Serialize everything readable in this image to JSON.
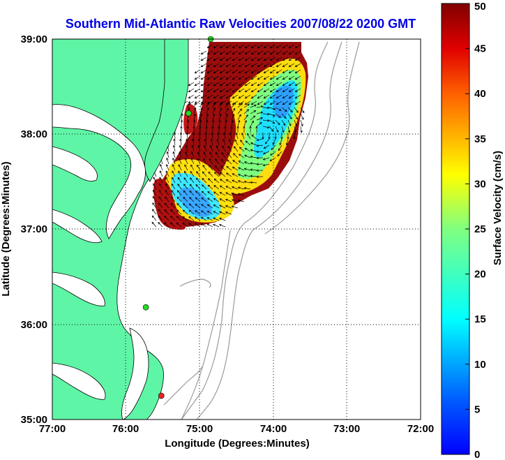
{
  "figure": {
    "title": "Southern Mid-Atlantic Raw Velocities 2007/08/22 0200 GMT",
    "xlabel": "Longitude (Degrees:Minutes)",
    "ylabel": "Latitude (Degrees:Minutes)",
    "xticks": [
      "77:00",
      "76:00",
      "75:00",
      "74:00",
      "73:00",
      "72:00"
    ],
    "yticks": [
      "39:00",
      "38:00",
      "37:00",
      "36:00",
      "35:00"
    ],
    "lon_range": [
      -77,
      -72
    ],
    "lat_range": [
      35,
      39
    ]
  },
  "colorbar": {
    "label": "Surface Velocity (cm/s)",
    "ticks": [
      "50",
      "45",
      "40",
      "35",
      "30",
      "25",
      "20",
      "15",
      "10",
      "5",
      "0"
    ],
    "range": [
      0,
      50
    ],
    "colormap": "jet"
  },
  "colors": {
    "land": "#5ff5a6",
    "title": "#0000e6",
    "bathymetry": "#9a9a9a",
    "station_active": "#22dd22",
    "station_inactive": "#ee2222"
  },
  "stations": [
    {
      "lon": -74.85,
      "lat": 39.0,
      "status": "active"
    },
    {
      "lon": -75.15,
      "lat": 38.22,
      "status": "active"
    },
    {
      "lon": -75.73,
      "lat": 36.18,
      "status": "active"
    },
    {
      "lon": -75.52,
      "lat": 35.25,
      "status": "inactive"
    }
  ]
}
